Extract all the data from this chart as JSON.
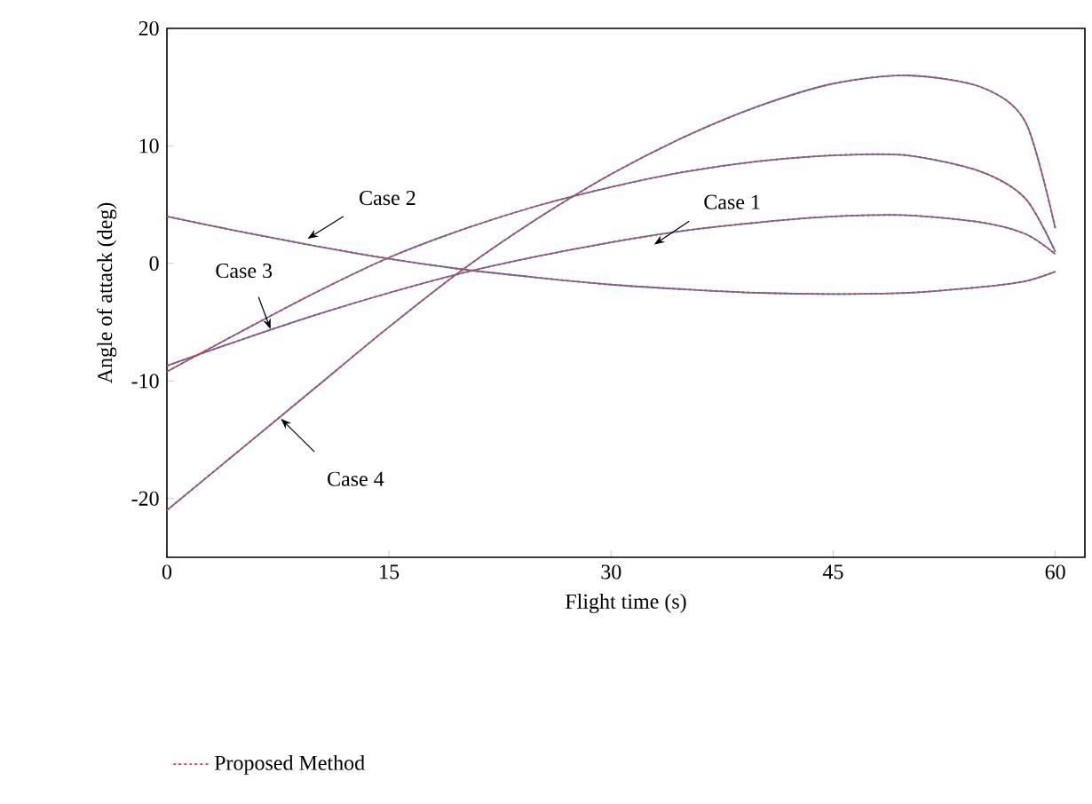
{
  "chart_data": {
    "type": "line",
    "xlabel": "Flight time (s)",
    "ylabel": "Angle of attack (deg)",
    "x": [
      0,
      5,
      10,
      15,
      20,
      25,
      30,
      35,
      40,
      45,
      50,
      55,
      58,
      60
    ],
    "series": [
      {
        "color": "#3a7fc1",
        "line_style": "solid",
        "values": [
          -8.7,
          -6.5,
          -4.4,
          -2.5,
          -0.8,
          0.6,
          1.8,
          2.8,
          3.5,
          4.0,
          4.1,
          3.5,
          2.5,
          0.8
        ]
      },
      {
        "color": "#3a7fc1",
        "line_style": "solid",
        "values": [
          4.0,
          2.7,
          1.5,
          0.4,
          -0.5,
          -1.2,
          -1.8,
          -2.2,
          -2.5,
          -2.6,
          -2.5,
          -2.0,
          -1.5,
          -0.7
        ]
      },
      {
        "color": "#3a7fc1",
        "line_style": "solid",
        "values": [
          -9.2,
          -5.8,
          -2.5,
          0.5,
          2.9,
          4.9,
          6.5,
          7.8,
          8.7,
          9.2,
          9.2,
          7.8,
          5.5,
          1.0
        ]
      },
      {
        "color": "#3a7fc1",
        "line_style": "solid",
        "values": [
          -21,
          -15.8,
          -10.6,
          -5.4,
          -0.5,
          3.8,
          7.6,
          10.8,
          13.4,
          15.3,
          16.0,
          15.0,
          12.0,
          3.0
        ]
      },
      {
        "name": "Proposed Method",
        "color": "#e8393a",
        "line_style": "dotted",
        "values": [
          -8.7,
          -6.5,
          -4.4,
          -2.5,
          -0.8,
          0.6,
          1.8,
          2.8,
          3.5,
          4.0,
          4.1,
          3.5,
          2.5,
          0.8
        ]
      },
      {
        "color": "#e8393a",
        "line_style": "dotted",
        "values": [
          4.0,
          2.7,
          1.5,
          0.4,
          -0.5,
          -1.2,
          -1.8,
          -2.2,
          -2.5,
          -2.6,
          -2.5,
          -2.0,
          -1.5,
          -0.7
        ]
      },
      {
        "color": "#e8393a",
        "line_style": "dotted",
        "values": [
          -9.2,
          -5.8,
          -2.5,
          0.5,
          2.9,
          4.9,
          6.5,
          7.8,
          8.7,
          9.2,
          9.2,
          7.8,
          5.5,
          1.0
        ]
      },
      {
        "color": "#e8393a",
        "line_style": "dotted",
        "values": [
          -21,
          -15.8,
          -10.6,
          -5.4,
          -0.5,
          3.8,
          7.6,
          10.8,
          13.4,
          15.3,
          16.0,
          15.0,
          12.0,
          3.0
        ]
      }
    ],
    "annotations": [
      {
        "text": "Case 1",
        "x": 32.9,
        "y": 1.6
      },
      {
        "text": "Case 2",
        "x": 9.5,
        "y": 2.1
      },
      {
        "text": "Case 3",
        "x": 7,
        "y": -5.6
      },
      {
        "text": "Case 4",
        "x": 7.7,
        "y": -13.2
      }
    ],
    "xlim": [
      0,
      62
    ],
    "ylim": [
      -25,
      20
    ],
    "xticks": [
      0,
      15,
      30,
      45,
      60
    ],
    "yticks": [
      -20,
      -10,
      0,
      10,
      20
    ],
    "grid": false,
    "legend": "bottom",
    "marker": "none"
  }
}
